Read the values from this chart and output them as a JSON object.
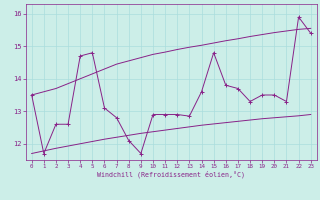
{
  "x": [
    0,
    1,
    2,
    3,
    4,
    5,
    6,
    7,
    8,
    9,
    10,
    11,
    12,
    13,
    14,
    15,
    16,
    17,
    18,
    19,
    20,
    21,
    22,
    23
  ],
  "y_main": [
    13.5,
    11.7,
    12.6,
    12.6,
    14.7,
    14.8,
    13.1,
    12.8,
    12.1,
    11.7,
    12.9,
    12.9,
    12.9,
    12.85,
    13.6,
    14.8,
    13.8,
    13.7,
    13.3,
    13.5,
    13.5,
    13.3,
    15.9,
    15.4
  ],
  "y_upper": [
    13.5,
    13.6,
    13.7,
    13.85,
    14.0,
    14.15,
    14.3,
    14.45,
    14.55,
    14.65,
    14.75,
    14.82,
    14.9,
    14.97,
    15.03,
    15.1,
    15.17,
    15.23,
    15.3,
    15.36,
    15.42,
    15.47,
    15.52,
    15.55
  ],
  "y_lower": [
    11.7,
    11.78,
    11.86,
    11.93,
    12.0,
    12.07,
    12.14,
    12.2,
    12.26,
    12.32,
    12.37,
    12.42,
    12.47,
    12.52,
    12.57,
    12.61,
    12.65,
    12.69,
    12.73,
    12.77,
    12.8,
    12.83,
    12.86,
    12.9
  ],
  "color_main": "#882288",
  "background": "#cceee8",
  "grid_color": "#aadddd",
  "text_color": "#882288",
  "xlabel": "Windchill (Refroidissement éolien,°C)",
  "xlim": [
    -0.5,
    23.5
  ],
  "ylim": [
    11.5,
    16.3
  ],
  "yticks": [
    12,
    13,
    14,
    15,
    16
  ],
  "xticks": [
    0,
    1,
    2,
    3,
    4,
    5,
    6,
    7,
    8,
    9,
    10,
    11,
    12,
    13,
    14,
    15,
    16,
    17,
    18,
    19,
    20,
    21,
    22,
    23
  ]
}
